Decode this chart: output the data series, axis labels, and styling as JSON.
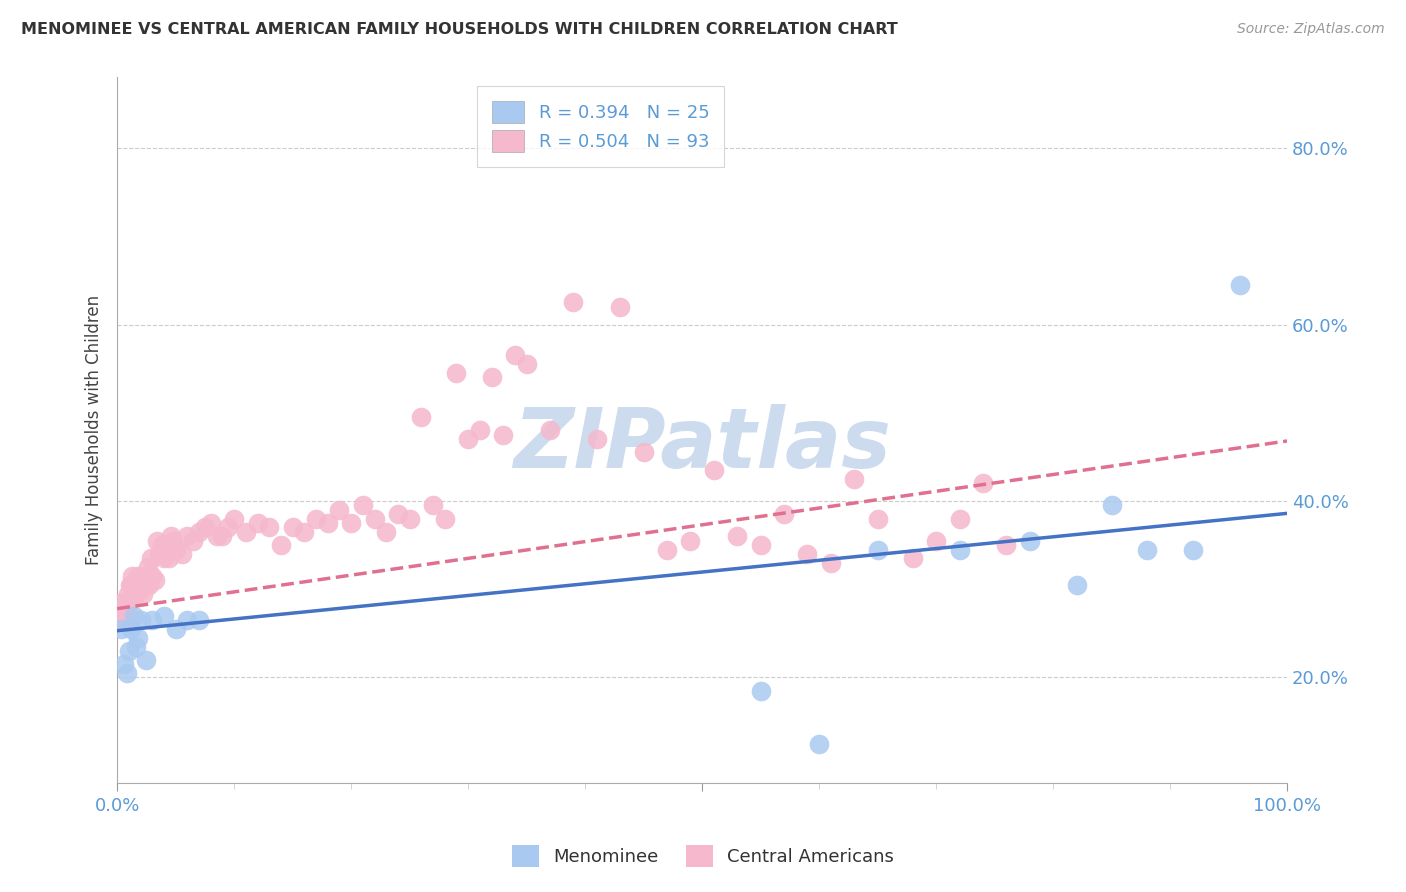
{
  "title": "MENOMINEE VS CENTRAL AMERICAN FAMILY HOUSEHOLDS WITH CHILDREN CORRELATION CHART",
  "source": "Source: ZipAtlas.com",
  "ylabel": "Family Households with Children",
  "ytick_values": [
    0.2,
    0.4,
    0.6,
    0.8
  ],
  "xlim": [
    0.0,
    1.0
  ],
  "ylim": [
    0.08,
    0.88
  ],
  "legend_entries": [
    {
      "label": "R = 0.394   N = 25",
      "color": "#aac9f0"
    },
    {
      "label": "R = 0.504   N = 93",
      "color": "#f5b8cc"
    }
  ],
  "menominee_color": "#aac9f0",
  "central_american_color": "#f5b8cc",
  "trend_blue_color": "#4472c4",
  "trend_pink_color": "#e07090",
  "watermark_text": "ZIPatlas",
  "watermark_color": "#ccdcee",
  "background_color": "#ffffff",
  "grid_color": "#cccccc",
  "menominee_x": [
    0.003,
    0.006,
    0.008,
    0.01,
    0.012,
    0.014,
    0.016,
    0.018,
    0.02,
    0.025,
    0.03,
    0.04,
    0.05,
    0.06,
    0.07,
    0.55,
    0.6,
    0.65,
    0.72,
    0.78,
    0.82,
    0.85,
    0.88,
    0.92,
    0.96
  ],
  "menominee_y": [
    0.255,
    0.215,
    0.205,
    0.23,
    0.255,
    0.27,
    0.235,
    0.245,
    0.265,
    0.22,
    0.265,
    0.27,
    0.255,
    0.265,
    0.265,
    0.185,
    0.125,
    0.345,
    0.345,
    0.355,
    0.305,
    0.395,
    0.345,
    0.345,
    0.645
  ],
  "central_american_x": [
    0.003,
    0.004,
    0.005,
    0.006,
    0.007,
    0.008,
    0.009,
    0.01,
    0.011,
    0.012,
    0.013,
    0.014,
    0.015,
    0.016,
    0.017,
    0.018,
    0.019,
    0.02,
    0.021,
    0.022,
    0.023,
    0.024,
    0.025,
    0.026,
    0.027,
    0.028,
    0.029,
    0.03,
    0.032,
    0.034,
    0.036,
    0.038,
    0.04,
    0.042,
    0.044,
    0.046,
    0.048,
    0.05,
    0.055,
    0.06,
    0.065,
    0.07,
    0.075,
    0.08,
    0.085,
    0.09,
    0.095,
    0.1,
    0.11,
    0.12,
    0.13,
    0.14,
    0.15,
    0.16,
    0.17,
    0.18,
    0.19,
    0.2,
    0.21,
    0.22,
    0.23,
    0.24,
    0.25,
    0.26,
    0.27,
    0.28,
    0.29,
    0.3,
    0.31,
    0.32,
    0.33,
    0.34,
    0.35,
    0.37,
    0.39,
    0.41,
    0.43,
    0.45,
    0.47,
    0.49,
    0.51,
    0.53,
    0.55,
    0.57,
    0.59,
    0.61,
    0.63,
    0.65,
    0.68,
    0.7,
    0.72,
    0.74,
    0.76
  ],
  "central_american_y": [
    0.275,
    0.285,
    0.27,
    0.265,
    0.28,
    0.275,
    0.295,
    0.285,
    0.305,
    0.305,
    0.315,
    0.295,
    0.305,
    0.295,
    0.305,
    0.315,
    0.31,
    0.3,
    0.305,
    0.295,
    0.305,
    0.315,
    0.305,
    0.325,
    0.305,
    0.31,
    0.335,
    0.315,
    0.31,
    0.355,
    0.34,
    0.35,
    0.335,
    0.345,
    0.335,
    0.36,
    0.355,
    0.345,
    0.34,
    0.36,
    0.355,
    0.365,
    0.37,
    0.375,
    0.36,
    0.36,
    0.37,
    0.38,
    0.365,
    0.375,
    0.37,
    0.35,
    0.37,
    0.365,
    0.38,
    0.375,
    0.39,
    0.375,
    0.395,
    0.38,
    0.365,
    0.385,
    0.38,
    0.495,
    0.395,
    0.38,
    0.545,
    0.47,
    0.48,
    0.54,
    0.475,
    0.565,
    0.555,
    0.48,
    0.625,
    0.47,
    0.62,
    0.455,
    0.345,
    0.355,
    0.435,
    0.36,
    0.35,
    0.385,
    0.34,
    0.33,
    0.425,
    0.38,
    0.335,
    0.355,
    0.38,
    0.42,
    0.35
  ],
  "blue_trend_x0": 0.0,
  "blue_trend_y0": 0.253,
  "blue_trend_x1": 1.0,
  "blue_trend_y1": 0.386,
  "pink_trend_x0": 0.0,
  "pink_trend_y0": 0.278,
  "pink_trend_x1": 1.0,
  "pink_trend_y1": 0.468
}
